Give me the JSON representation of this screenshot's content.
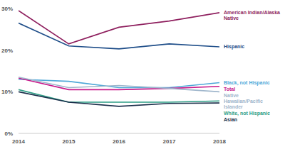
{
  "chart_data": {
    "type": "line",
    "x": [
      2014,
      2015,
      2016,
      2017,
      2018
    ],
    "xlim": [
      2014,
      2018
    ],
    "xticks": [
      2014,
      2015,
      2016,
      2017,
      2018
    ],
    "ylim": [
      0,
      30
    ],
    "yticks": [
      {
        "value": 0,
        "label": "0%"
      },
      {
        "value": 10,
        "label": "10%"
      },
      {
        "value": 20,
        "label": "20%"
      },
      {
        "value": 30,
        "label": "30%"
      }
    ],
    "grid": false,
    "series": [
      {
        "name": "American Indian/Alaska Native",
        "color": "#8e1f5e",
        "values": [
          29.5,
          21.5,
          25.5,
          27,
          29
        ]
      },
      {
        "name": "Hispanic",
        "color": "#1f4e89",
        "values": [
          26.5,
          21,
          20.3,
          21.5,
          20.8
        ]
      },
      {
        "name": "Black, not Hispanic",
        "color": "#4fa8d8",
        "values": [
          13,
          12.5,
          11,
          11,
          12.2
        ]
      },
      {
        "name": "Total",
        "color": "#c8198a",
        "values": [
          13.3,
          10.5,
          10.5,
          10.8,
          11.3
        ]
      },
      {
        "name": "Native Hawaiian/Pacific Islander",
        "color": "#9fb6cc",
        "values": [
          13.5,
          11,
          11.5,
          10.8,
          10
        ]
      },
      {
        "name": "White, not Hispanic",
        "color": "#2f9e86",
        "values": [
          10.5,
          7.5,
          7.5,
          7.5,
          7.8
        ]
      },
      {
        "name": "Asian",
        "color": "#1a2e4a",
        "values": [
          10,
          7.5,
          6.5,
          7.2,
          7.3
        ]
      }
    ]
  }
}
